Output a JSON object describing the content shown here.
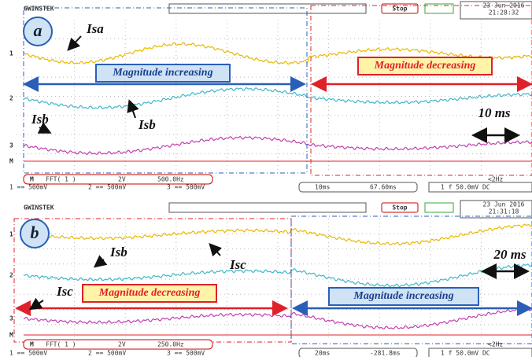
{
  "panels": [
    {
      "label": "a",
      "brand": "GWINSTEK",
      "status": "Stop",
      "date": "23 Jun 2016",
      "time": "21:28:32",
      "channels": [
        "1",
        "2",
        "3",
        "M"
      ],
      "annotations": [
        "Isa",
        "Isb",
        "Isb"
      ],
      "banners": [
        "Magnitude increasing",
        "Magnitude decreasing"
      ],
      "time_scale": "10 ms",
      "math": "M",
      "fft": "FFT( 1 )",
      "fft_scale": "2V",
      "fft_rate": "500.0Hz",
      "ch_scales": [
        "1 == 500mV",
        "2 == 500mV",
        "3 == 500mV"
      ],
      "timebase": "10ms",
      "position": "67.60ms",
      "trigger_freq": "<2Hz",
      "trigger": "1 f 50.0mV DC"
    },
    {
      "label": "b",
      "brand": "GWINSTEK",
      "status": "Stop",
      "date": "23 Jun 2016",
      "time": "21:31:18",
      "channels": [
        "1",
        "2",
        "3",
        "M"
      ],
      "annotations": [
        "Isb",
        "Isc",
        "Isc"
      ],
      "banners": [
        "Magnitude decreasing",
        "Magnitude increasing"
      ],
      "time_scale": "20 ms",
      "math": "M",
      "fft": "FFT( 1 )",
      "fft_scale": "2V",
      "fft_rate": "250.0Hz",
      "ch_scales": [
        "1 == 500mV",
        "2 == 500mV",
        "3 == 500mV"
      ],
      "timebase": "20ms",
      "position": "-281.8ms",
      "trigger_freq": "<2Hz",
      "trigger": "1 f 50.0mV DC"
    }
  ]
}
